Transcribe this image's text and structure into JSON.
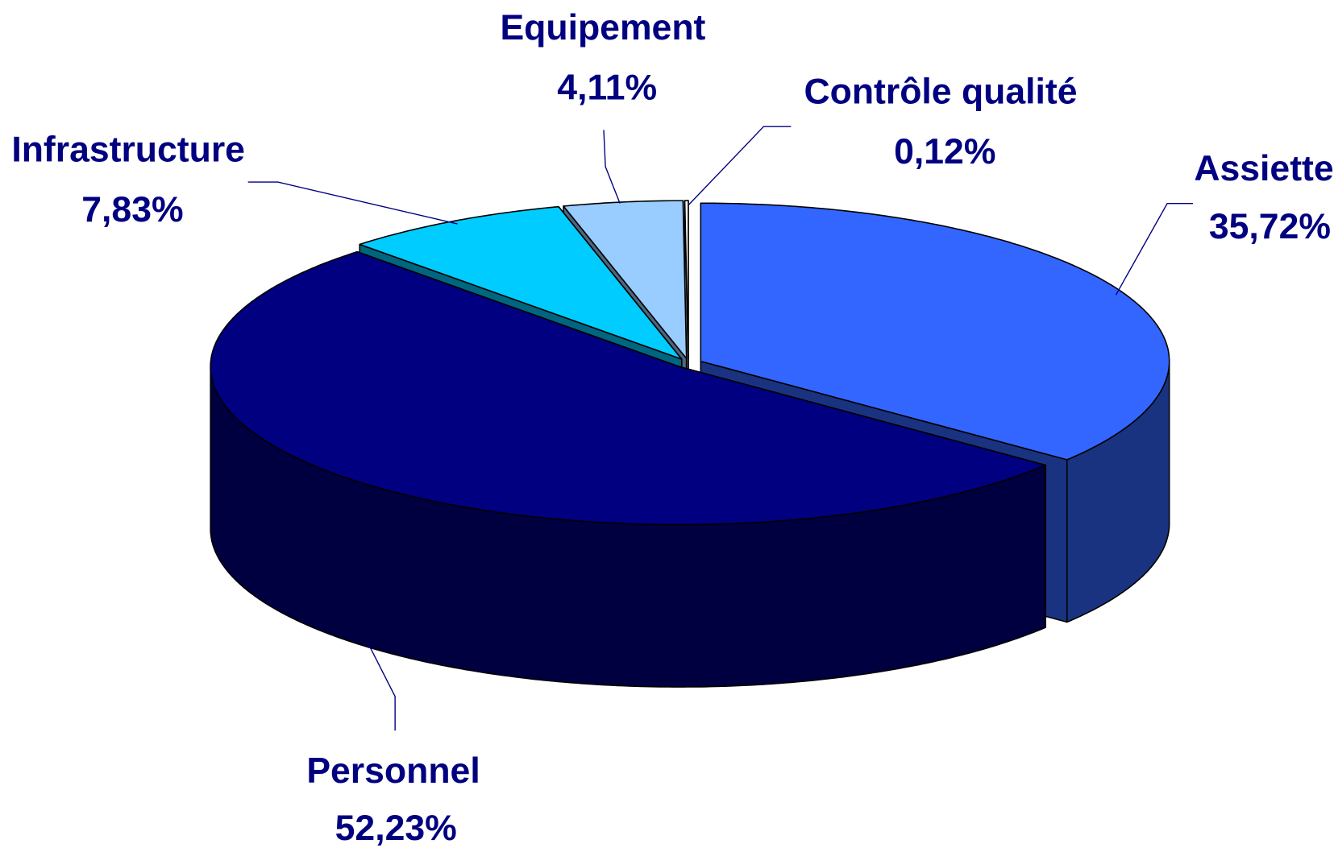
{
  "chart_data": {
    "type": "pie3d",
    "categories": [
      "Assiette",
      "Personnel",
      "Infrastructure",
      "Equipement",
      "Contrôle qualité"
    ],
    "values": [
      35.72,
      52.23,
      7.83,
      4.11,
      0.12
    ],
    "value_labels": [
      "35,72%",
      "52,23%",
      "7,83%",
      "4,11%",
      "0,12%"
    ],
    "colors": [
      "#3366ff",
      "#000080",
      "#00ccff",
      "#99ccff",
      "#ffffff"
    ]
  }
}
